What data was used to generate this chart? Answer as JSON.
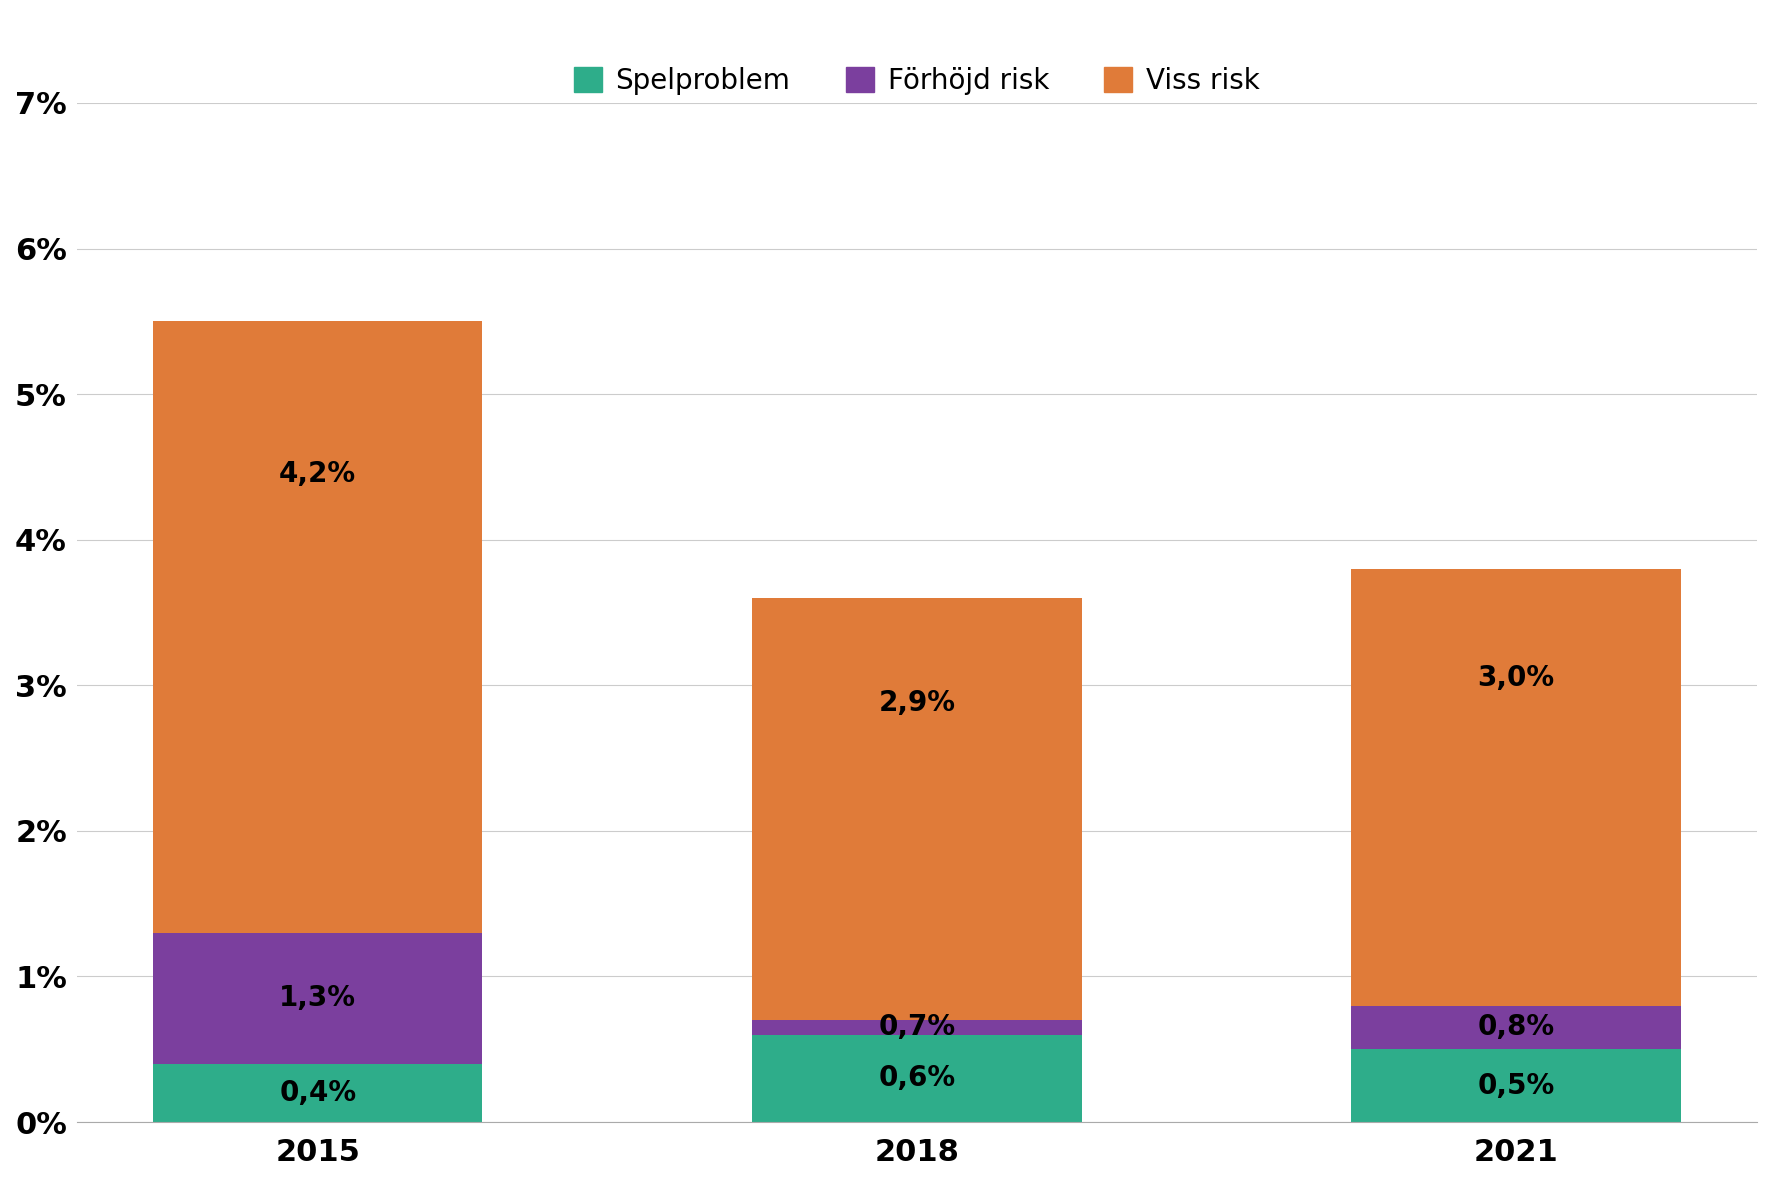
{
  "years": [
    "2015",
    "2018",
    "2021"
  ],
  "spelproblem": [
    0.4,
    0.6,
    0.5
  ],
  "forhojd_risk_cumulative": [
    1.3,
    0.7,
    0.8
  ],
  "viss_risk_segment": [
    4.2,
    2.9,
    3.0
  ],
  "spelproblem_color": "#2EAD8A",
  "forhojd_risk_color": "#7B3F9E",
  "viss_risk_color": "#E07B39",
  "background_color": "#FFFFFF",
  "ylim": [
    0,
    7
  ],
  "yticks": [
    0,
    1,
    2,
    3,
    4,
    5,
    6,
    7
  ],
  "ytick_labels": [
    "0%",
    "1%",
    "2%",
    "3%",
    "4%",
    "5%",
    "6%",
    "7%"
  ],
  "legend_labels": [
    "Spelproblem",
    "Förhöjd risk",
    "Viss risk"
  ],
  "bar_width": 0.55,
  "tick_fontsize": 22,
  "legend_fontsize": 20,
  "annotation_fontsize": 20,
  "grid_color": "#CCCCCC",
  "grid_linewidth": 0.8
}
